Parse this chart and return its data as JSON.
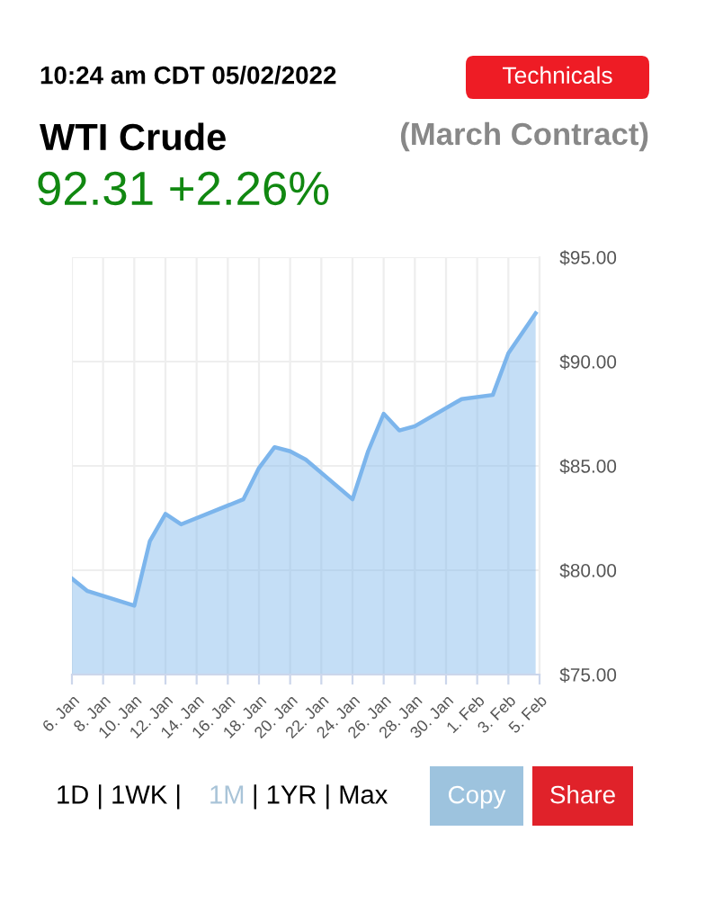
{
  "chart_data": {
    "type": "area",
    "title": "WTI Crude",
    "subtitle": "(March Contract)",
    "annotations": [
      "10:24 am CDT 05/02/2022",
      "Technicals",
      "92.31 +2.26%",
      "1D | 1WK |",
      "1M",
      "| 1YR | Max",
      "Copy",
      "Share"
    ],
    "x": [
      "2022-01-06",
      "2022-01-07",
      "2022-01-10",
      "2022-01-11",
      "2022-01-12",
      "2022-01-13",
      "2022-01-17",
      "2022-01-18",
      "2022-01-19",
      "2022-01-20",
      "2022-01-21",
      "2022-01-24",
      "2022-01-25",
      "2022-01-26",
      "2022-01-27",
      "2022-01-28",
      "2022-01-31",
      "2022-02-02",
      "2022-02-03",
      "2022-02-04T18:00"
    ],
    "series": [
      {
        "color": "#7cb5ec",
        "values": [
          79.6,
          79.0,
          78.3,
          81.4,
          82.7,
          82.2,
          83.4,
          84.9,
          85.9,
          85.7,
          85.3,
          83.4,
          85.7,
          87.5,
          86.7,
          86.9,
          88.2,
          88.4,
          90.4,
          92.31
        ]
      }
    ],
    "xlim": [
      "2022-01-06",
      "2022-02-05"
    ],
    "xticks": [
      {
        "value": "2022-01-06",
        "label": "6. Jan"
      },
      {
        "value": "2022-01-08",
        "label": "8. Jan"
      },
      {
        "value": "2022-01-10",
        "label": "10. Jan"
      },
      {
        "value": "2022-01-12",
        "label": "12. Jan"
      },
      {
        "value": "2022-01-14",
        "label": "14. Jan"
      },
      {
        "value": "2022-01-16",
        "label": "16. Jan"
      },
      {
        "value": "2022-01-18",
        "label": "18. Jan"
      },
      {
        "value": "2022-01-20",
        "label": "20. Jan"
      },
      {
        "value": "2022-01-22",
        "label": "22. Jan"
      },
      {
        "value": "2022-01-24",
        "label": "24. Jan"
      },
      {
        "value": "2022-01-26",
        "label": "26. Jan"
      },
      {
        "value": "2022-01-28",
        "label": "28. Jan"
      },
      {
        "value": "2022-01-30",
        "label": "30. Jan"
      },
      {
        "value": "2022-02-01",
        "label": "1. Feb"
      },
      {
        "value": "2022-02-03",
        "label": "3. Feb"
      },
      {
        "value": "2022-02-05",
        "label": "5. Feb"
      }
    ],
    "ylim": [
      75,
      95
    ],
    "yticks": [
      {
        "value": 75,
        "label": "$75.00"
      },
      {
        "value": 80,
        "label": "$80.00"
      },
      {
        "value": 85,
        "label": "$85.00"
      },
      {
        "value": 90,
        "label": "$90.00"
      },
      {
        "value": 95,
        "label": "$95.00"
      }
    ],
    "grid": true
  }
}
